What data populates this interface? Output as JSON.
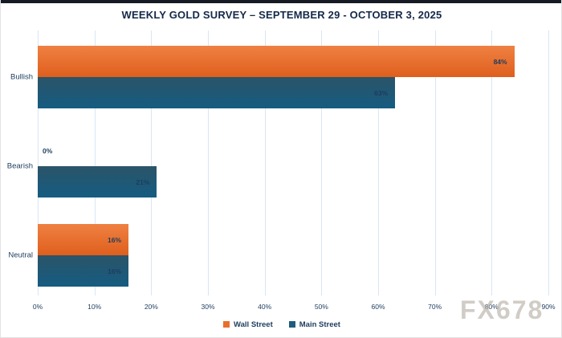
{
  "chart_data": {
    "type": "bar",
    "orientation": "horizontal",
    "title": "WEEKLY GOLD SURVEY – SEPTEMBER 29 - OCTOBER 3, 2025",
    "categories": [
      "Bullish",
      "Bearish",
      "Neutral"
    ],
    "series": [
      {
        "name": "Wall Street",
        "values": [
          84,
          0,
          16
        ],
        "value_labels": [
          "84%",
          "0%",
          "16%"
        ],
        "color": "#e8702d",
        "gradient_top": "#ef8142",
        "gradient_bottom": "#df5f1d"
      },
      {
        "name": "Main Street",
        "values": [
          63,
          21,
          16
        ],
        "value_labels": [
          "63%",
          "21%",
          "16%"
        ],
        "color": "#1f5c7d",
        "gradient_top": "#2b5468",
        "gradient_bottom": "#155c81"
      }
    ],
    "x_ticks": [
      "0%",
      "10%",
      "20%",
      "30%",
      "40%",
      "50%",
      "60%",
      "70%",
      "80%",
      "90%"
    ],
    "xlim": [
      0,
      90
    ],
    "grid": "vertical-only",
    "legend_position": "bottom-center"
  },
  "watermark": "FX678",
  "colors": {
    "title_text": "#14294a",
    "axis_text": "#1d3c5e",
    "gridline": "#d8e6f3",
    "background": "#ffffff",
    "top_bar": "#151a24",
    "watermark": "#b9b1a9"
  }
}
